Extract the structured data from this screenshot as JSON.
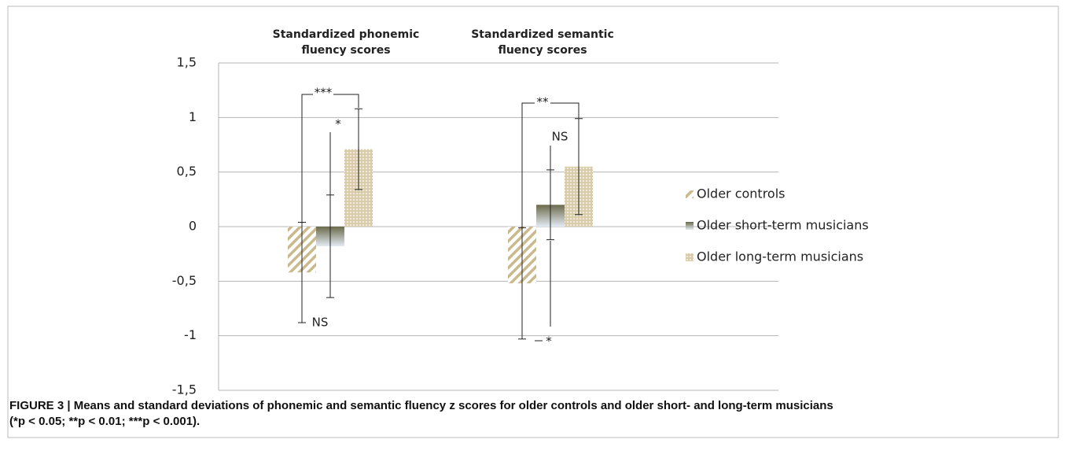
{
  "chart_data": {
    "type": "bar",
    "categories": [
      "Standardized phonemic fluency scores",
      "Standardized semantic fluency scores"
    ],
    "series": [
      {
        "name": "Older controls",
        "color": "#c9b98c",
        "values": [
          -0.42,
          -0.52
        ],
        "errors": [
          0.46,
          0.51
        ]
      },
      {
        "name": "Older short-term musicians",
        "color": "#6b6a4a",
        "values": [
          -0.18,
          0.2
        ],
        "errors": [
          0.47,
          0.32
        ]
      },
      {
        "name": "Older long-term musicians",
        "color": "#d9ccaa",
        "values": [
          0.71,
          0.55
        ],
        "errors": [
          0.37,
          0.44
        ]
      }
    ],
    "ylim": [
      -1.5,
      1.5
    ],
    "yticks": [
      {
        "value": -1.5,
        "label": "-1,5"
      },
      -1,
      {
        "value": -0.5,
        "label": "-0,5"
      },
      0,
      {
        "value": 0.5,
        "label": "0,5"
      },
      1,
      {
        "value": 1.5,
        "label": "1,5"
      }
    ],
    "grid": true,
    "legend": "right",
    "annotations": [
      "***",
      "*",
      "NS",
      "**",
      "NS",
      "*"
    ],
    "caption": [
      "FIGURE 3 | Means and standard deviations of phonemic and semantic fluency z scores for older controls and older short- and long-term musicians",
      "(*p < 0.05; **p < 0.01; ***p < 0.001)."
    ]
  }
}
